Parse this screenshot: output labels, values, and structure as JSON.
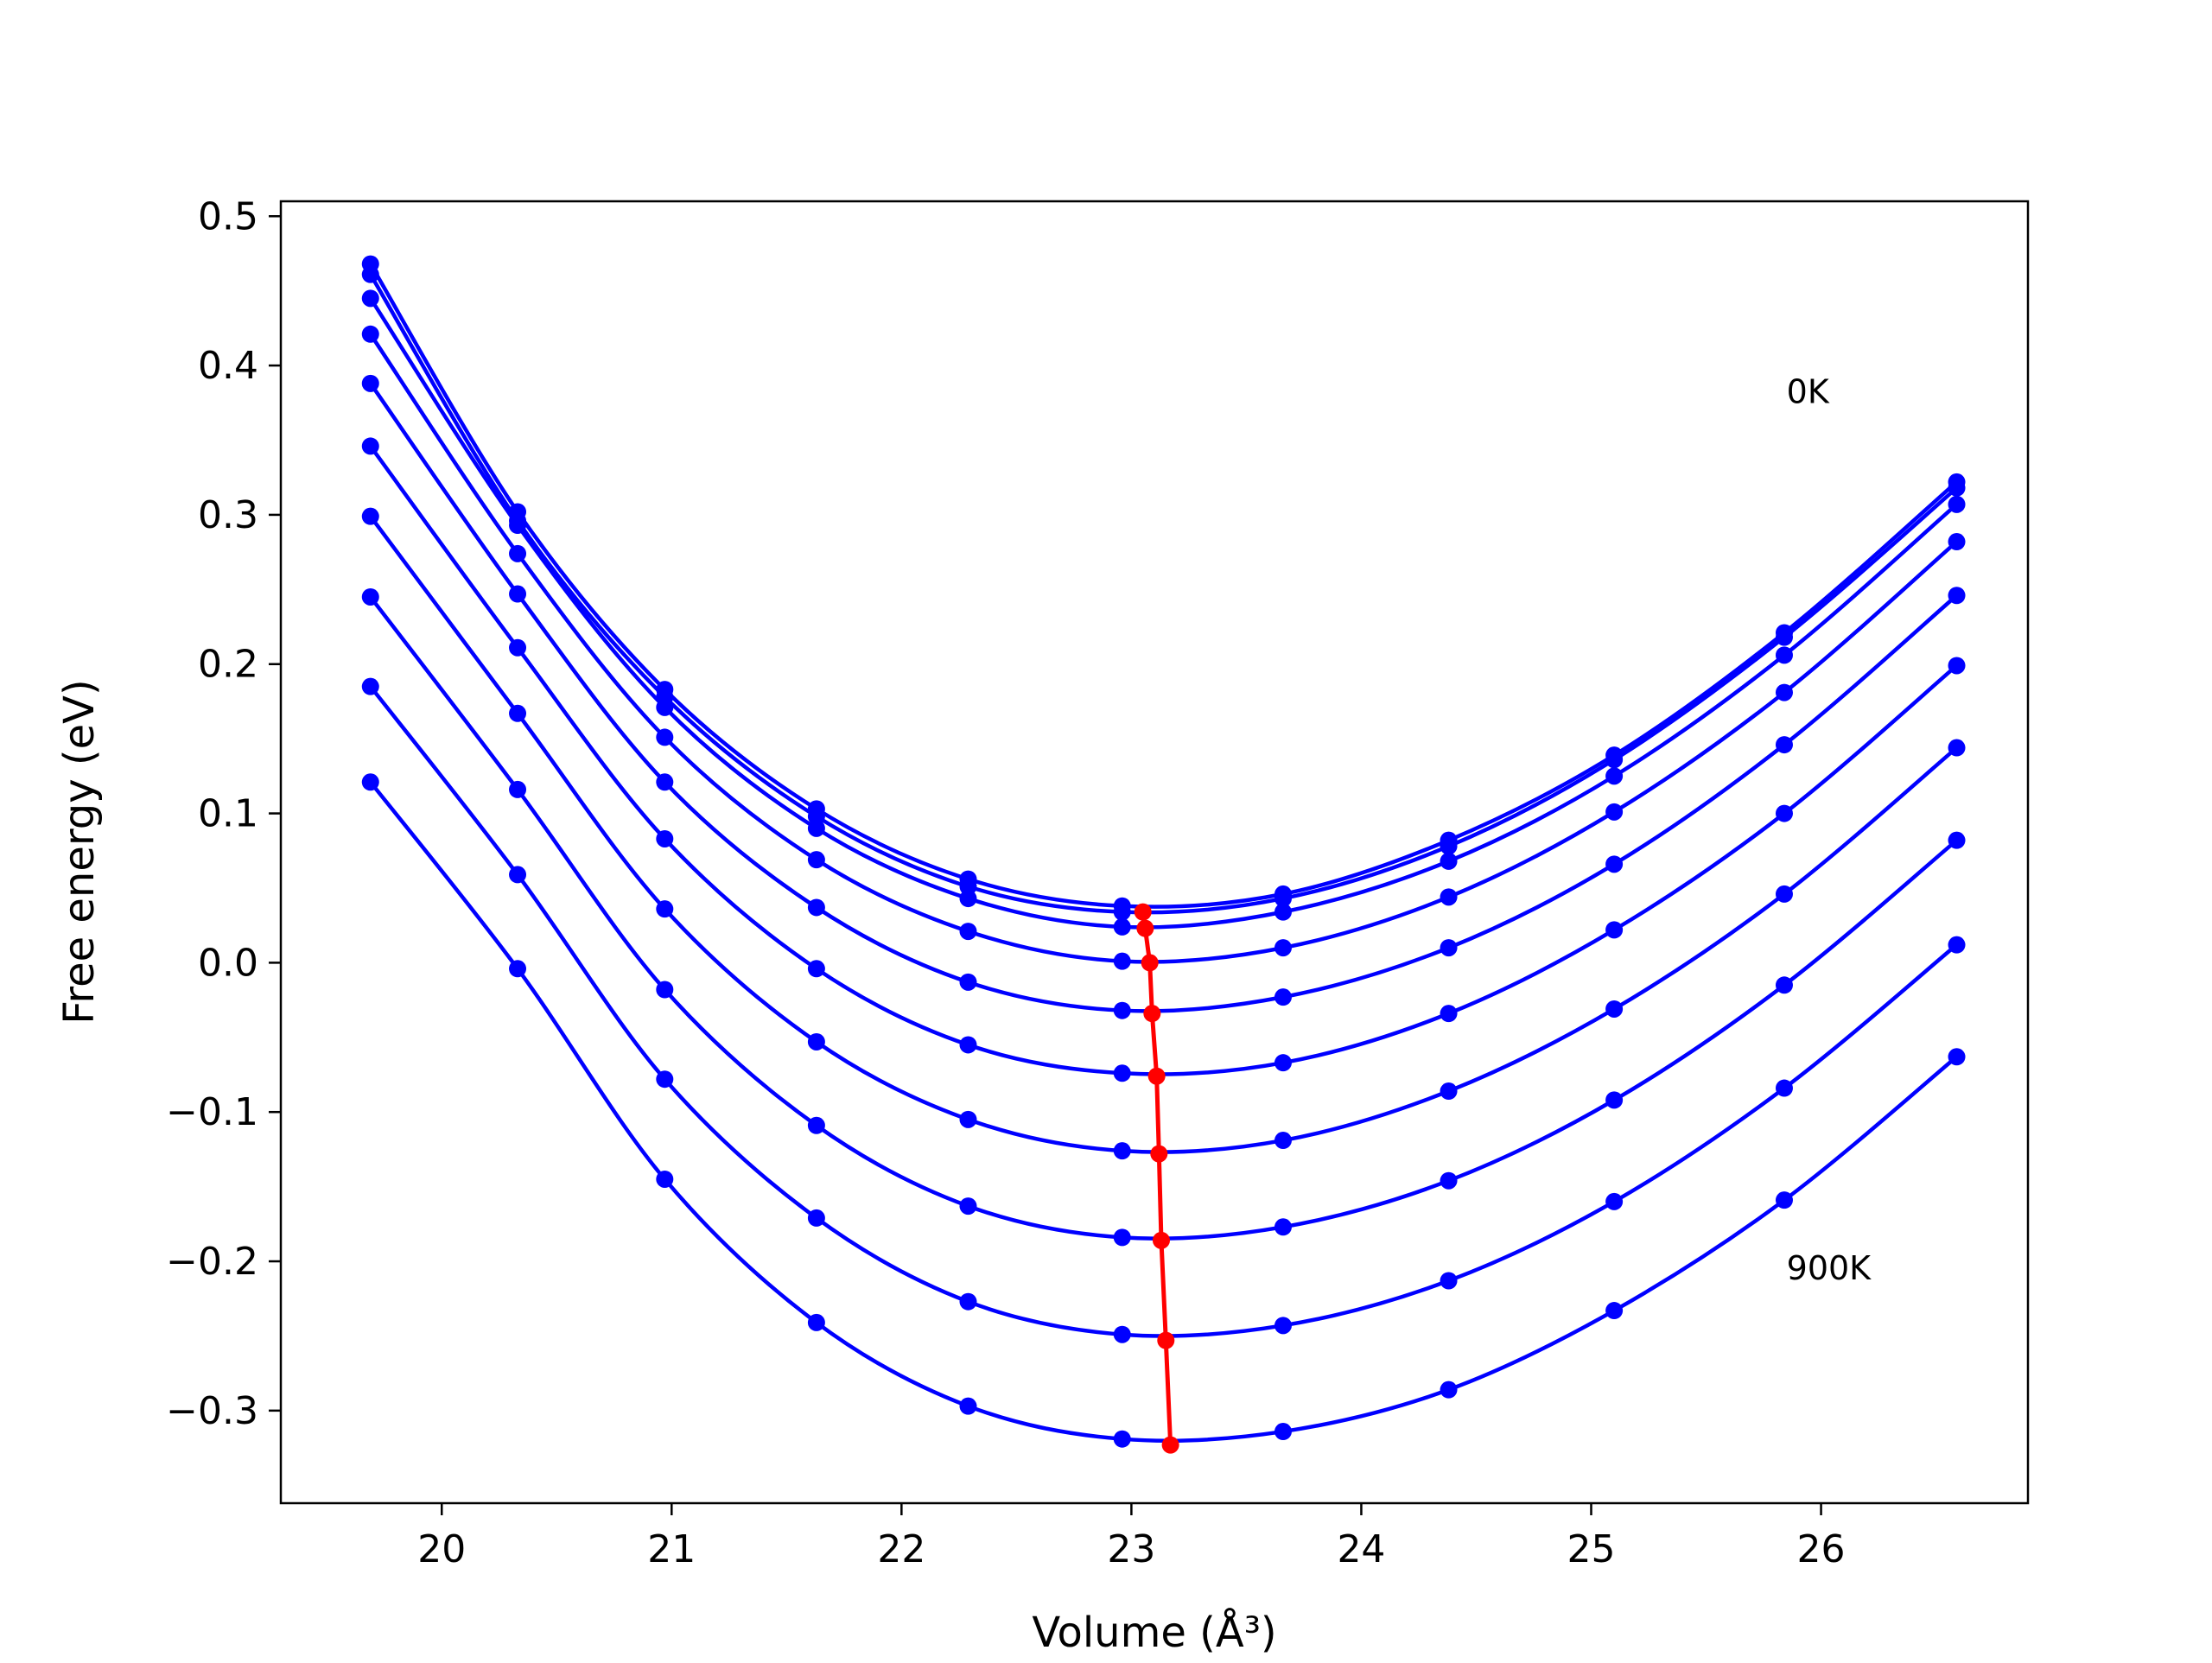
{
  "chart_data": {
    "type": "line",
    "title": "",
    "xlabel": "Volume (Å³)",
    "ylabel": "Free energy (eV)",
    "xlim": [
      19.3,
      26.9
    ],
    "ylim": [
      -0.362,
      0.51
    ],
    "xticks": [
      20,
      21,
      22,
      23,
      24,
      25,
      26
    ],
    "xtick_labels": [
      "20",
      "21",
      "22",
      "23",
      "24",
      "25",
      "26"
    ],
    "yticks": [
      -0.3,
      -0.2,
      -0.1,
      0.0,
      0.1,
      0.2,
      0.3,
      0.4,
      0.5
    ],
    "ytick_labels": [
      "−0.3",
      "−0.2",
      "−0.1",
      "0.0",
      "0.1",
      "0.2",
      "0.3",
      "0.4",
      "0.5"
    ],
    "grid": false,
    "legend": null,
    "curve_color": "#0000ff",
    "min_color": "#ff0000",
    "x": [
      19.69,
      20.33,
      20.97,
      21.63,
      22.29,
      22.96,
      23.66,
      24.38,
      25.1,
      25.84,
      26.59
    ],
    "series": [
      {
        "values": [
          0.468,
          0.302,
          0.183,
          0.103,
          0.056,
          0.038,
          0.046,
          0.082,
          0.139,
          0.221,
          0.322
        ]
      },
      {
        "values": [
          0.461,
          0.296,
          0.178,
          0.098,
          0.051,
          0.034,
          0.043,
          0.078,
          0.136,
          0.218,
          0.318
        ]
      },
      {
        "values": [
          0.445,
          0.293,
          0.171,
          0.09,
          0.043,
          0.024,
          0.034,
          0.068,
          0.125,
          0.206,
          0.307
        ]
      },
      {
        "values": [
          0.421,
          0.274,
          0.151,
          0.069,
          0.021,
          0.001,
          0.01,
          0.044,
          0.101,
          0.181,
          0.282
        ]
      },
      {
        "values": [
          0.388,
          0.247,
          0.121,
          0.037,
          -0.013,
          -0.032,
          -0.023,
          0.01,
          0.066,
          0.146,
          0.246
        ]
      },
      {
        "values": [
          0.346,
          0.211,
          0.083,
          -0.004,
          -0.055,
          -0.074,
          -0.067,
          -0.034,
          0.022,
          0.1,
          0.199
        ]
      },
      {
        "values": [
          0.299,
          0.167,
          0.036,
          -0.053,
          -0.105,
          -0.126,
          -0.119,
          -0.086,
          -0.031,
          0.046,
          0.144
        ]
      },
      {
        "values": [
          0.245,
          0.116,
          -0.018,
          -0.109,
          -0.163,
          -0.184,
          -0.177,
          -0.146,
          -0.092,
          -0.015,
          0.082
        ]
      },
      {
        "values": [
          0.185,
          0.059,
          -0.078,
          -0.171,
          -0.227,
          -0.249,
          -0.243,
          -0.213,
          -0.16,
          -0.084,
          0.012
        ]
      },
      {
        "values": [
          0.121,
          -0.004,
          -0.145,
          -0.241,
          -0.297,
          -0.319,
          -0.314,
          -0.286,
          -0.233,
          -0.159,
          -0.063
        ]
      }
    ],
    "minima": {
      "x": [
        23.05,
        23.06,
        23.08,
        23.09,
        23.11,
        23.12,
        23.13,
        23.15,
        23.17
      ],
      "y": [
        0.034,
        0.023,
        0.0,
        -0.034,
        -0.076,
        -0.128,
        -0.186,
        -0.253,
        -0.323
      ]
    },
    "annotations": [
      {
        "text": "0K",
        "x": 25.85,
        "y": 0.375
      },
      {
        "text": "900K",
        "x": 25.85,
        "y": -0.212
      }
    ]
  }
}
